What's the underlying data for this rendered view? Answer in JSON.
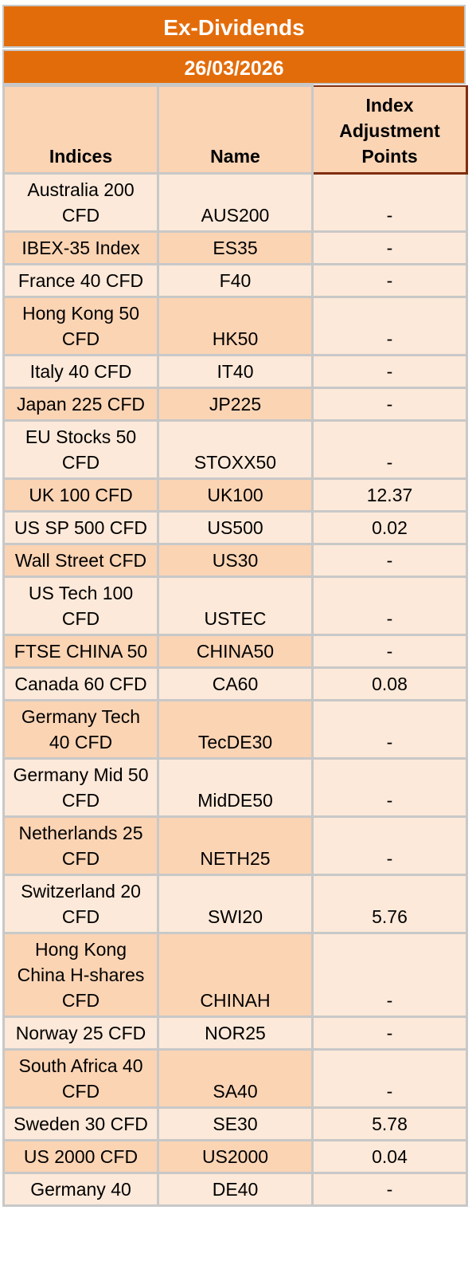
{
  "title": "Ex-Dividends",
  "date": "26/03/2026",
  "headers": {
    "indices": "Indices",
    "name": "Name",
    "adjustment": "Index Adjustment Points"
  },
  "rows": [
    {
      "index": "Australia 200 CFD",
      "name": "AUS200",
      "points": "-",
      "shade": "light"
    },
    {
      "index": "IBEX-35 Index",
      "name": "ES35",
      "points": "-",
      "shade": "dark"
    },
    {
      "index": "France 40 CFD",
      "name": "F40",
      "points": "-",
      "shade": "light"
    },
    {
      "index": "Hong Kong 50 CFD",
      "name": "HK50",
      "points": "-",
      "shade": "dark"
    },
    {
      "index": "Italy 40 CFD",
      "name": "IT40",
      "points": "-",
      "shade": "light"
    },
    {
      "index": "Japan 225 CFD",
      "name": "JP225",
      "points": "-",
      "shade": "dark"
    },
    {
      "index": "EU Stocks 50 CFD",
      "name": "STOXX50",
      "points": "-",
      "shade": "light"
    },
    {
      "index": "UK 100 CFD",
      "name": "UK100",
      "points": "12.37",
      "shade": "dark"
    },
    {
      "index": "US SP 500 CFD",
      "name": "US500",
      "points": "0.02",
      "shade": "light"
    },
    {
      "index": "Wall Street CFD",
      "name": "US30",
      "points": "-",
      "shade": "dark"
    },
    {
      "index": "US Tech 100 CFD",
      "name": "USTEC",
      "points": "-",
      "shade": "light"
    },
    {
      "index": "FTSE CHINA 50",
      "name": "CHINA50",
      "points": "-",
      "shade": "dark"
    },
    {
      "index": "Canada 60 CFD",
      "name": "CA60",
      "points": "0.08",
      "shade": "light"
    },
    {
      "index": "Germany Tech 40 CFD",
      "name": "TecDE30",
      "points": "-",
      "shade": "dark"
    },
    {
      "index": "Germany Mid 50 CFD",
      "name": "MidDE50",
      "points": "-",
      "shade": "light"
    },
    {
      "index": "Netherlands 25 CFD",
      "name": "NETH25",
      "points": "-",
      "shade": "dark"
    },
    {
      "index": "Switzerland 20 CFD",
      "name": "SWI20",
      "points": "5.76",
      "shade": "light"
    },
    {
      "index": "Hong Kong China H-shares CFD",
      "name": "CHINAH",
      "points": "-",
      "shade": "dark"
    },
    {
      "index": "Norway 25 CFD",
      "name": "NOR25",
      "points": "-",
      "shade": "light"
    },
    {
      "index": "South Africa 40 CFD",
      "name": "SA40",
      "points": "-",
      "shade": "dark"
    },
    {
      "index": "Sweden 30 CFD",
      "name": "SE30",
      "points": "5.78",
      "shade": "light"
    },
    {
      "index": "US 2000 CFD",
      "name": "US2000",
      "points": "0.04",
      "shade": "dark"
    },
    {
      "index": "Germany 40",
      "name": "DE40",
      "points": "-",
      "shade": "light"
    }
  ],
  "colors": {
    "header_orange": "#e36c0a",
    "light_row": "#fde9d9",
    "dark_row": "#fbd4b4"
  }
}
